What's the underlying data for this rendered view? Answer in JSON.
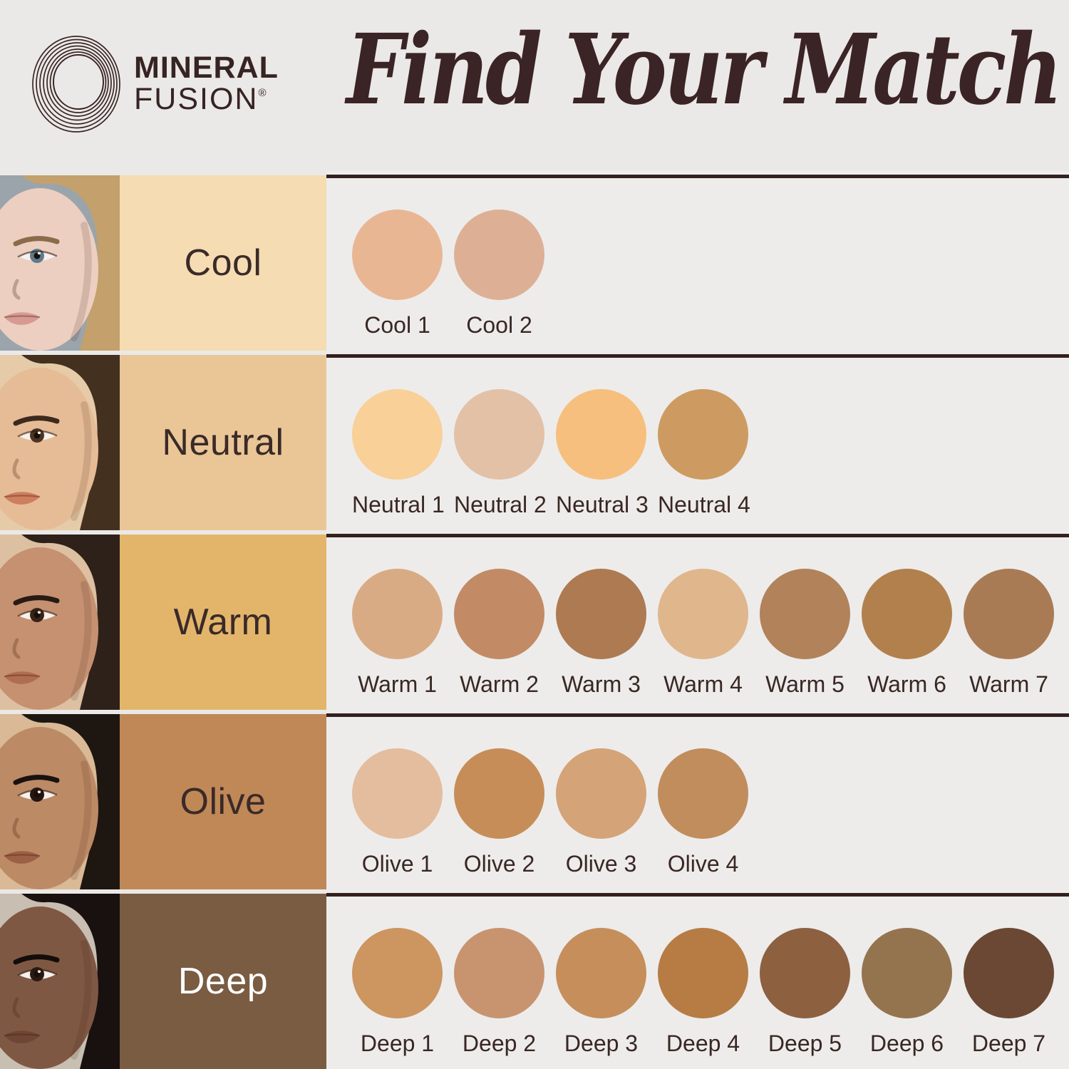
{
  "brand": {
    "line1": "MINERAL",
    "line2": "FUSION",
    "registered": "®"
  },
  "title": "Find Your Match",
  "theme": {
    "page_bg": "#ebe9e7",
    "panel_bg": "#edeceb",
    "rule_color": "#33201f",
    "ink": "#362422",
    "title_color": "#3b2425",
    "swatch_label_color": "#392723"
  },
  "rows": [
    {
      "id": "cool",
      "label": "Cool",
      "label_bg": "#f5dcb2",
      "label_color": "#3a2a28",
      "photo": {
        "bg": "#9ba4ab",
        "skin": "#eccfc0",
        "hair": "#c3a06c",
        "brow": "#8a6b4a",
        "eye": "#5f7b8c",
        "lip": "#d79a92"
      },
      "swatches": [
        {
          "name": "Cool 1",
          "color": "#e9b694"
        },
        {
          "name": "Cool 2",
          "color": "#ddb096"
        }
      ]
    },
    {
      "id": "neutral",
      "label": "Neutral",
      "label_bg": "#eac697",
      "label_color": "#3a2a28",
      "photo": {
        "bg": "#e6cba8",
        "skin": "#e6bc97",
        "hair": "#43301f",
        "brow": "#3c2a1c",
        "eye": "#4e3423",
        "lip": "#cf7e5e"
      },
      "swatches": [
        {
          "name": "Neutral 1",
          "color": "#f8d098"
        },
        {
          "name": "Neutral 2",
          "color": "#e3c1a7"
        },
        {
          "name": "Neutral 3",
          "color": "#f7bf7d"
        },
        {
          "name": "Neutral 4",
          "color": "#cd9b61"
        }
      ]
    },
    {
      "id": "warm",
      "label": "Warm",
      "label_bg": "#e3b56b",
      "label_color": "#3a2a28",
      "photo": {
        "bg": "#ddc0a1",
        "skin": "#c69171",
        "hair": "#2e211a",
        "brow": "#271b14",
        "eye": "#3a2417",
        "lip": "#b06e50"
      },
      "swatches": [
        {
          "name": "Warm 1",
          "color": "#d9ab85"
        },
        {
          "name": "Warm 2",
          "color": "#c28b65"
        },
        {
          "name": "Warm 3",
          "color": "#ad7a52"
        },
        {
          "name": "Warm 4",
          "color": "#e0b68c"
        },
        {
          "name": "Warm 5",
          "color": "#b2825b"
        },
        {
          "name": "Warm 6",
          "color": "#b2804c"
        },
        {
          "name": "Warm 7",
          "color": "#a97b55"
        }
      ]
    },
    {
      "id": "olive",
      "label": "Olive",
      "label_bg": "#c08857",
      "label_color": "#3a2a28",
      "photo": {
        "bg": "#d9b996",
        "skin": "#bd8a66",
        "hair": "#1e1611",
        "brow": "#191210",
        "eye": "#241511",
        "lip": "#9d6045"
      },
      "swatches": [
        {
          "name": "Olive 1",
          "color": "#e3bd9e"
        },
        {
          "name": "Olive 2",
          "color": "#c78d58"
        },
        {
          "name": "Olive 3",
          "color": "#d4a378"
        },
        {
          "name": "Olive 4",
          "color": "#c18d5d"
        }
      ]
    },
    {
      "id": "deep",
      "label": "Deep",
      "label_bg": "#7a5c43",
      "label_color": "#ffffff",
      "photo": {
        "bg": "#c8beb1",
        "skin": "#7f5843",
        "hair": "#181110",
        "brow": "#120d0b",
        "eye": "#2a1a12",
        "lip": "#6f4534"
      },
      "swatches": [
        {
          "name": "Deep 1",
          "color": "#cd9560"
        },
        {
          "name": "Deep 2",
          "color": "#c7946f"
        },
        {
          "name": "Deep 3",
          "color": "#c58e5b"
        },
        {
          "name": "Deep 4",
          "color": "#b67c44"
        },
        {
          "name": "Deep 5",
          "color": "#8d6040"
        },
        {
          "name": "Deep 6",
          "color": "#94744f"
        },
        {
          "name": "Deep 7",
          "color": "#6b4833"
        }
      ]
    }
  ]
}
